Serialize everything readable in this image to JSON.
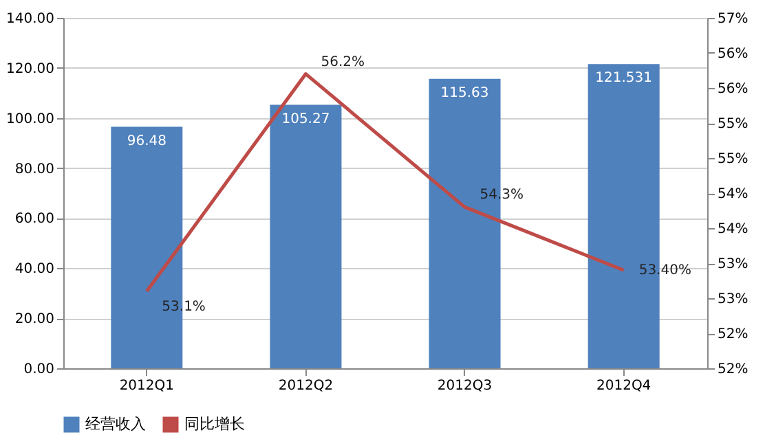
{
  "chart_data": {
    "type": "bar",
    "categories": [
      "2012Q1",
      "2012Q2",
      "2012Q3",
      "2012Q4"
    ],
    "series": [
      {
        "name": "经营收入",
        "color": "#4f81bd",
        "values": [
          96.48,
          105.27,
          115.63,
          121.531
        ],
        "value_labels": [
          "96.48",
          "105.27",
          "115.63",
          "121.531"
        ]
      },
      {
        "name": "同比增长",
        "type": "line",
        "axis": "y2",
        "color": "#be4b48",
        "values": [
          53.1,
          56.2,
          54.3,
          53.4
        ],
        "value_labels": [
          "53.1%",
          "56.2%",
          "54.3%",
          "53.40%"
        ]
      }
    ],
    "ylim": [
      0,
      140
    ],
    "yticks": [
      {
        "value": 0,
        "label": "0.00"
      },
      {
        "value": 20,
        "label": "20.00"
      },
      {
        "value": 40,
        "label": "40.00"
      },
      {
        "value": 60,
        "label": "60.00"
      },
      {
        "value": 80,
        "label": "80.00"
      },
      {
        "value": 100,
        "label": "100.00"
      },
      {
        "value": 120,
        "label": "120.00"
      },
      {
        "value": 140,
        "label": "140.00"
      }
    ],
    "y2lim": [
      52,
      57
    ],
    "y2ticks": [
      {
        "value": 52,
        "label": "52%"
      },
      {
        "value": 52.5,
        "label": "52%"
      },
      {
        "value": 53,
        "label": "53%"
      },
      {
        "value": 53.5,
        "label": "53%"
      },
      {
        "value": 54,
        "label": "54%"
      },
      {
        "value": 54.5,
        "label": "54%"
      },
      {
        "value": 55,
        "label": "55%"
      },
      {
        "value": 55.5,
        "label": "55%"
      },
      {
        "value": 56,
        "label": "56%"
      },
      {
        "value": 56.5,
        "label": "56%"
      },
      {
        "value": 57,
        "label": "57%"
      }
    ],
    "grid": "y",
    "legend": "bottom",
    "marker": "none",
    "line_style": "solid"
  }
}
